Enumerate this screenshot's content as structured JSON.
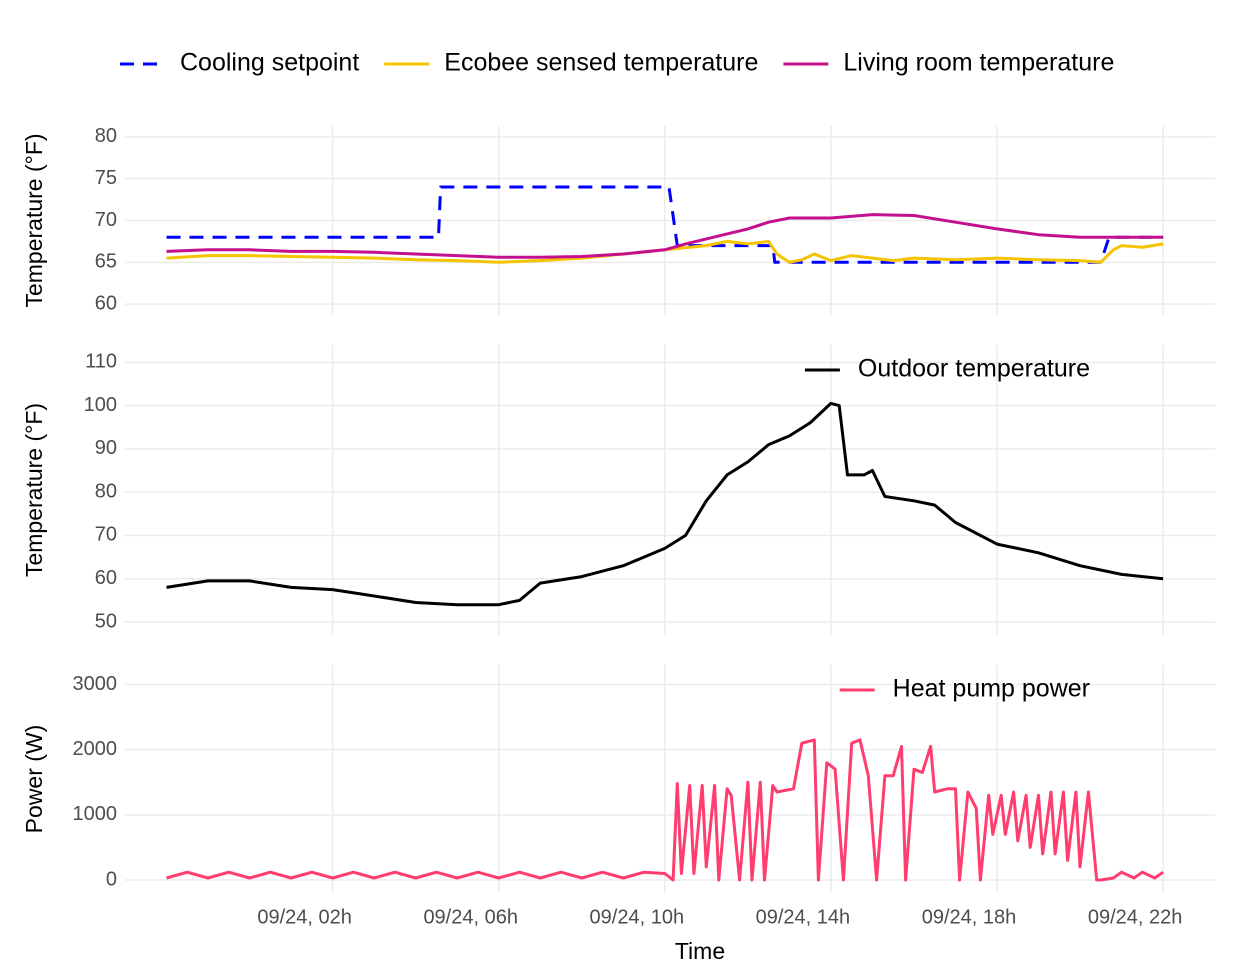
{
  "chart_data": [
    {
      "type": "line",
      "y_label": "Temperature (°F)",
      "ylim": [
        58.7,
        81.3
      ],
      "yticks": [
        60,
        65,
        70,
        75,
        80
      ],
      "grid": true,
      "legend": "top",
      "series": [
        {
          "name": "Cooling setpoint",
          "color": "#0000ff",
          "linestyle": "dashed",
          "x": [
            -2,
            4.55,
            4.6,
            10.1,
            10.3,
            12.6,
            12.65,
            20.5,
            20.7,
            22
          ],
          "values": [
            68,
            68,
            74,
            74,
            67,
            67,
            65,
            65,
            68,
            68
          ]
        },
        {
          "name": "Ecobee sensed temperature",
          "color": "#f5c400",
          "linestyle": "solid",
          "x": [
            -2,
            -1,
            0,
            1,
            2,
            3,
            4,
            5,
            6,
            7,
            8,
            9,
            10,
            11,
            11.5,
            12,
            12.5,
            12.7,
            13,
            13.3,
            13.6,
            14,
            14.5,
            15,
            15.5,
            16,
            17,
            18,
            19,
            20,
            20.5,
            20.8,
            21,
            21.5,
            22
          ],
          "values": [
            65.5,
            65.8,
            65.8,
            65.7,
            65.6,
            65.5,
            65.3,
            65.2,
            65,
            65.2,
            65.5,
            66,
            66.5,
            67,
            67.5,
            67.2,
            67.5,
            66,
            65,
            65.3,
            66,
            65.2,
            65.8,
            65.5,
            65.2,
            65.5,
            65.3,
            65.5,
            65.3,
            65.2,
            65,
            66.5,
            67,
            66.8,
            67.2
          ]
        },
        {
          "name": "Living room temperature",
          "color": "#c4108f",
          "linestyle": "solid",
          "x": [
            -2,
            -1,
            0,
            1,
            2,
            3,
            4,
            5,
            6,
            7,
            8,
            9,
            10,
            10.5,
            11,
            12,
            12.5,
            13,
            14,
            15,
            16,
            17,
            18,
            19,
            20,
            21,
            22
          ],
          "values": [
            66.3,
            66.5,
            66.5,
            66.3,
            66.3,
            66.2,
            66,
            65.8,
            65.6,
            65.6,
            65.7,
            66,
            66.5,
            67.2,
            67.8,
            69,
            69.8,
            70.3,
            70.3,
            70.7,
            70.6,
            69.8,
            69,
            68.3,
            68,
            68,
            68
          ]
        }
      ]
    },
    {
      "type": "line",
      "y_label": "Temperature (°F)",
      "ylim": [
        47,
        114
      ],
      "yticks": [
        50,
        60,
        70,
        80,
        90,
        100,
        110
      ],
      "grid": true,
      "legend": "top-right",
      "series": [
        {
          "name": "Outdoor temperature",
          "color": "#000000",
          "linestyle": "solid",
          "x": [
            -2,
            -1,
            0,
            1,
            2,
            3,
            4,
            5,
            6,
            6.5,
            7,
            8,
            9,
            10,
            10.5,
            11,
            11.5,
            12,
            12.5,
            13,
            13.5,
            14,
            14.2,
            14.4,
            14.8,
            15,
            15.3,
            16,
            16.5,
            17,
            18,
            19,
            20,
            21,
            22
          ],
          "values": [
            58,
            59.5,
            59.5,
            58,
            57.5,
            56,
            54.5,
            54,
            54,
            55,
            59,
            60.5,
            63,
            67,
            70,
            78,
            84,
            87,
            91,
            93,
            96,
            100.5,
            100,
            84,
            84,
            85,
            79,
            78,
            77,
            73,
            68,
            66,
            63,
            61,
            60
          ]
        }
      ]
    },
    {
      "type": "line",
      "y_label": "Power (W)",
      "x_label": "Time",
      "ylim": [
        -200,
        3300
      ],
      "yticks": [
        0,
        1000,
        2000,
        3000
      ],
      "grid": true,
      "legend": "top-right",
      "xlim": [
        -3,
        23.25
      ],
      "xticks": [
        {
          "value": 2,
          "label": "09/24, 02h"
        },
        {
          "value": 6,
          "label": "09/24, 06h"
        },
        {
          "value": 10,
          "label": "09/24, 10h"
        },
        {
          "value": 14,
          "label": "09/24, 14h"
        },
        {
          "value": 18,
          "label": "09/24, 18h"
        },
        {
          "value": 22,
          "label": "09/24, 22h"
        }
      ],
      "series": [
        {
          "name": "Heat pump power",
          "color": "#ff3d6e",
          "linestyle": "solid",
          "x": [
            -2,
            -1.5,
            -1,
            -0.5,
            0,
            0.5,
            1,
            1.5,
            2,
            2.5,
            3,
            3.5,
            4,
            4.5,
            5,
            5.5,
            6,
            6.5,
            7,
            7.5,
            8,
            8.5,
            9,
            9.5,
            10,
            10.2,
            10.3,
            10.4,
            10.6,
            10.7,
            10.9,
            11,
            11.2,
            11.3,
            11.5,
            11.6,
            11.8,
            12,
            12.1,
            12.3,
            12.4,
            12.6,
            12.7,
            13.1,
            13.3,
            13.6,
            13.7,
            13.9,
            14.1,
            14.3,
            14.5,
            14.7,
            14.9,
            15.1,
            15.3,
            15.5,
            15.7,
            15.8,
            16,
            16.2,
            16.4,
            16.5,
            16.8,
            17,
            17.1,
            17.3,
            17.5,
            17.6,
            17.8,
            17.9,
            18.1,
            18.2,
            18.4,
            18.5,
            18.7,
            18.8,
            19,
            19.1,
            19.3,
            19.4,
            19.6,
            19.7,
            19.9,
            20,
            20.2,
            20.4,
            20.5,
            20.8,
            21,
            21.3,
            21.5,
            21.8,
            22
          ],
          "values": [
            30,
            120,
            30,
            120,
            30,
            120,
            30,
            120,
            30,
            120,
            30,
            120,
            30,
            120,
            30,
            120,
            30,
            120,
            30,
            120,
            30,
            120,
            30,
            120,
            100,
            0,
            1480,
            100,
            1450,
            100,
            1450,
            200,
            1450,
            0,
            1400,
            1300,
            0,
            1500,
            0,
            1500,
            0,
            1450,
            1350,
            1400,
            2100,
            2150,
            0,
            1800,
            1700,
            0,
            2100,
            2150,
            1600,
            0,
            1600,
            1600,
            2050,
            0,
            1700,
            1650,
            2050,
            1350,
            1400,
            1400,
            0,
            1350,
            1100,
            0,
            1300,
            700,
            1300,
            700,
            1350,
            600,
            1300,
            500,
            1300,
            400,
            1350,
            400,
            1350,
            300,
            1350,
            200,
            1350,
            0,
            0,
            30,
            120,
            30,
            120,
            30,
            120
          ]
        }
      ]
    }
  ]
}
